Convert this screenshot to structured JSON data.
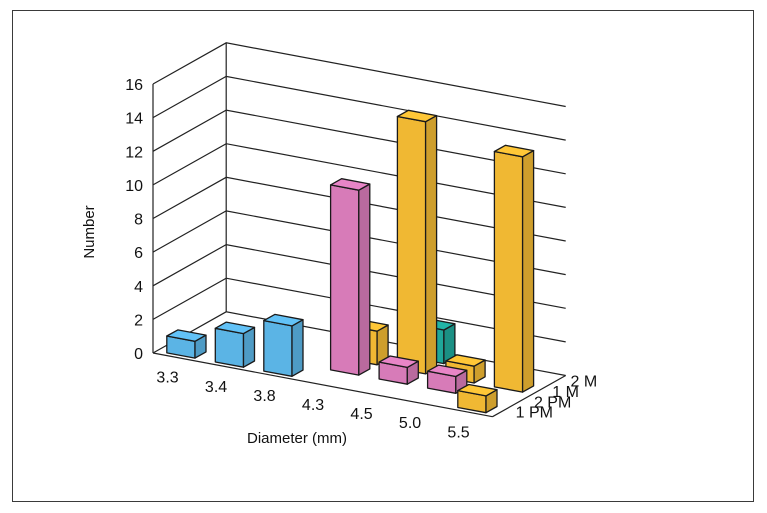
{
  "chart_data": {
    "type": "bar",
    "style": "3d-clustered",
    "title": "",
    "xlabel": "Diameter (mm)",
    "ylabel": "Number",
    "ylim": [
      0,
      16
    ],
    "yticks": [
      "0",
      "2",
      "4",
      "6",
      "8",
      "10",
      "12",
      "14",
      "16"
    ],
    "grid": true,
    "categories": [
      "3.3",
      "3.4",
      "3.8",
      "4.3",
      "4.5",
      "5.0",
      "5.5"
    ],
    "depth_labels": [
      "1 PM",
      "2 PM",
      "1 M",
      "2 M"
    ],
    "series": [
      {
        "name": "1 PM",
        "color": "#5bb4e5",
        "values": [
          1,
          2,
          3,
          0,
          0,
          0,
          0
        ]
      },
      {
        "name": "2 PM",
        "color": "#d77bb8",
        "values": [
          0,
          0,
          0,
          11,
          1,
          1,
          0
        ]
      },
      {
        "name": "1 M",
        "color": "#f0b833",
        "values": [
          0,
          0,
          0,
          2,
          15,
          1,
          14
        ]
      },
      {
        "name": "2 M",
        "color": "#1fa79a",
        "values": [
          0,
          0,
          0,
          0,
          2,
          0,
          0
        ]
      }
    ],
    "extra_bars": [
      {
        "category": "5.5",
        "depth": "1 PM",
        "color": "#f0b833",
        "value": 1
      }
    ]
  }
}
